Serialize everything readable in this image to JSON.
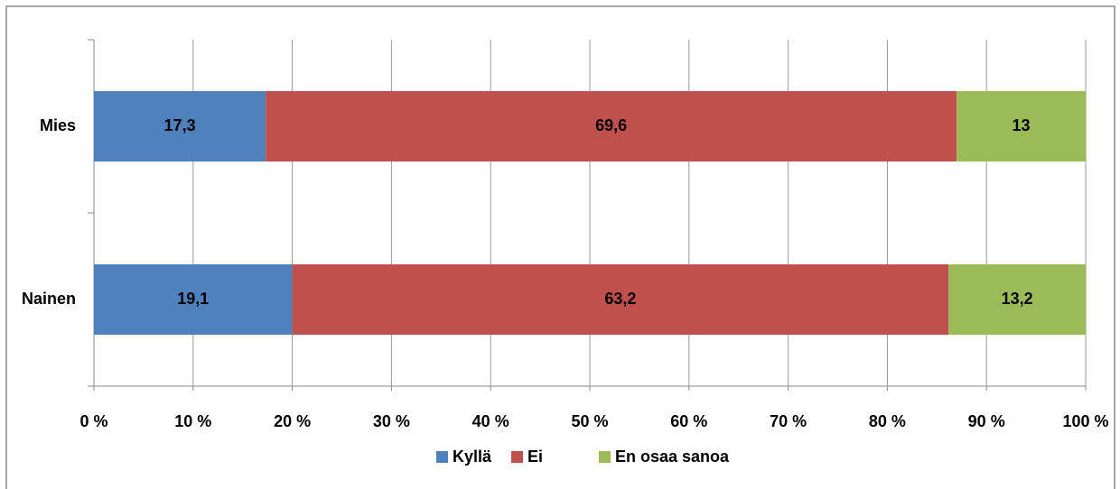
{
  "chart_data": {
    "type": "bar",
    "orientation": "horizontal",
    "stacking": "percent",
    "categories": [
      "Mies",
      "Nainen"
    ],
    "series": [
      {
        "name": "Kyllä",
        "color": "#4f81bd",
        "values": [
          17.3,
          19.1
        ],
        "value_labels": [
          "17,3",
          "19,1"
        ]
      },
      {
        "name": "Ei",
        "color": "#c0504d",
        "values": [
          69.6,
          63.2
        ],
        "value_labels": [
          "69,6",
          "63,2"
        ]
      },
      {
        "name": "En osaa sanoa",
        "color": "#9bbb59",
        "values": [
          13,
          13.2
        ],
        "value_labels": [
          "13",
          "13,2"
        ]
      }
    ],
    "xlim": [
      0,
      100
    ],
    "xticks": [
      {
        "value": 0,
        "label": "0 %"
      },
      {
        "value": 10,
        "label": "10 %"
      },
      {
        "value": 20,
        "label": "20 %"
      },
      {
        "value": 30,
        "label": "30 %"
      },
      {
        "value": 40,
        "label": "40 %"
      },
      {
        "value": 50,
        "label": "50 %"
      },
      {
        "value": 60,
        "label": "60 %"
      },
      {
        "value": 70,
        "label": "70 %"
      },
      {
        "value": 80,
        "label": "80 %"
      },
      {
        "value": 90,
        "label": "90 %"
      },
      {
        "value": 100,
        "label": "100 %"
      }
    ],
    "grid": true,
    "legend": "bottom"
  }
}
